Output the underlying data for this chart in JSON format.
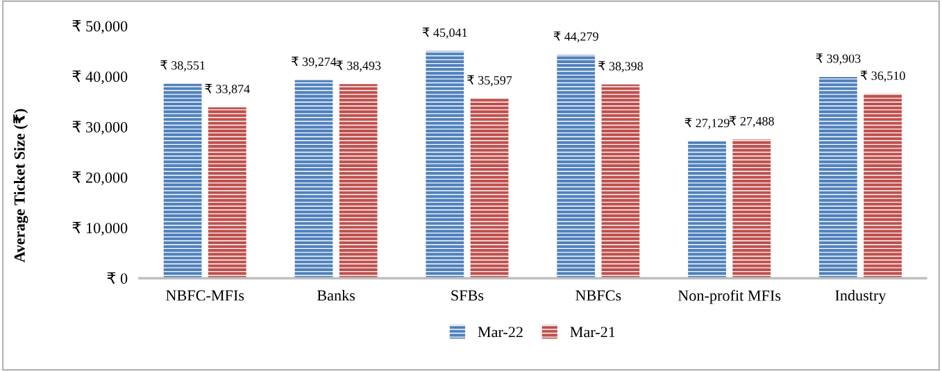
{
  "chart_data": {
    "type": "bar",
    "ylabel": "Average Ticket Size (₹)",
    "categories": [
      "NBFC-MFIs",
      "Banks",
      "SFBs",
      "NBFCs",
      "Non-profit MFIs",
      "Industry"
    ],
    "series": [
      {
        "name": "Mar-22",
        "color": "#4f81bd",
        "values": [
          38551,
          39274,
          45041,
          44279,
          27129,
          39903
        ],
        "value_labels": [
          "₹ 38,551",
          "₹ 39,274",
          "₹ 45,041",
          "₹ 44,279",
          "₹ 27,129",
          "₹ 39,903"
        ]
      },
      {
        "name": "Mar-21",
        "color": "#c0504d",
        "values": [
          33874,
          38493,
          35597,
          38398,
          27488,
          36510
        ],
        "value_labels": [
          "₹ 33,874",
          "₹ 38,493",
          "₹ 35,597",
          "₹ 38,398",
          "₹ 27,488",
          "₹ 36,510"
        ]
      }
    ],
    "ylim": [
      0,
      50000
    ],
    "yticks": [
      {
        "value": 0,
        "label": "₹ 0"
      },
      {
        "value": 10000,
        "label": "₹ 10,000"
      },
      {
        "value": 20000,
        "label": "₹ 20,000"
      },
      {
        "value": 30000,
        "label": "₹ 30,000"
      },
      {
        "value": 40000,
        "label": "₹ 40,000"
      },
      {
        "value": 50000,
        "label": "₹ 50,000"
      }
    ],
    "grid": false,
    "legend": "bottom"
  }
}
